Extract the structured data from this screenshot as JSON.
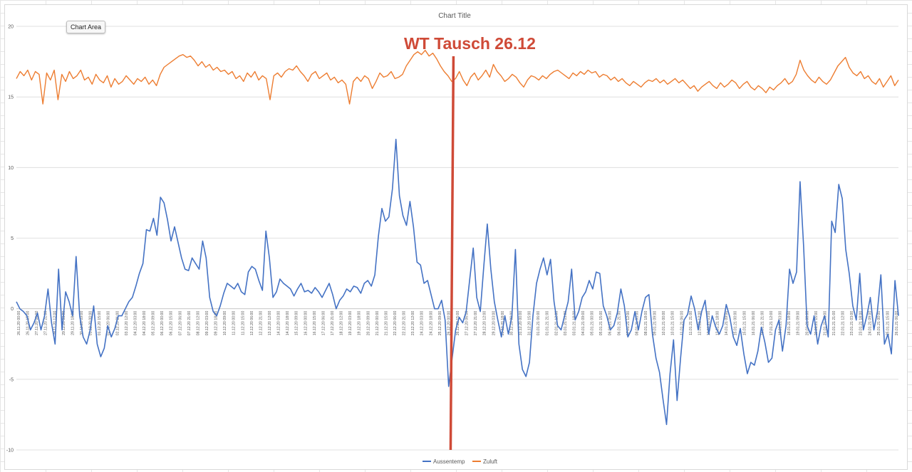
{
  "tooltip": {
    "label": "Chart Area"
  },
  "chart_data": {
    "type": "line",
    "title": "Chart Title",
    "xlabel": "",
    "ylabel": "",
    "ylim": [
      -10,
      20
    ],
    "yticks": [
      -10,
      -5,
      0,
      5,
      10,
      15,
      20
    ],
    "grid": true,
    "legend": "bottom",
    "colors": {
      "Aussentemp": "#4472c4",
      "Zuluft": "#ed7d31",
      "annotation": "#cf4a37"
    },
    "x_tick_labels": [
      "26.11.20 00:00",
      "26.11.20 15:00",
      "27.11.20 06:00",
      "27.11.20 21:00",
      "28.11.20 12:00",
      "29.11.20 03:00",
      "29.11.20 18:00",
      "30.11.20 09:00",
      "01.12.20 00:00",
      "01.12.20 15:00",
      "02.12.20 06:00",
      "02.12.20 21:00",
      "03.12.20 12:00",
      "04.12.20 03:00",
      "04.12.20 18:00",
      "05.12.20 09:00",
      "06.12.20 00:00",
      "06.12.20 15:00",
      "07.12.20 06:00",
      "07.12.20 21:00",
      "08.12.20 12:00",
      "09.12.20 03:00",
      "09.12.20 18:00",
      "10.12.20 09:00",
      "11.12.20 00:00",
      "11.12.20 15:00",
      "12.12.20 06:00",
      "12.12.20 21:00",
      "13.12.20 12:00",
      "14.12.20 03:00",
      "14.12.20 18:00",
      "15.12.20 09:00",
      "16.12.20 00:00",
      "16.12.20 15:00",
      "17.12.20 06:00",
      "17.12.20 21:00",
      "18.12.20 12:00",
      "19.12.20 03:00",
      "19.12.20 18:00",
      "20.12.20 09:00",
      "21.12.20 00:00",
      "21.12.20 15:00",
      "22.12.20 06:00",
      "22.12.20 21:00",
      "23.12.20 12:00",
      "24.12.20 03:00",
      "24.12.20 18:00",
      "25.12.20 09:00",
      "26.12.20 00:00",
      "26.12.20 15:00",
      "27.12.20 06:00",
      "27.12.20 21:00",
      "28.12.20 12:00",
      "29.12.20 03:00",
      "29.12.20 18:00",
      "30.12.20 09:00",
      "31.12.20 00:00",
      "31.12.20 15:00",
      "01.01.21 06:00",
      "01.01.21 21:00",
      "02.01.21 12:00",
      "03.01.21 03:00",
      "03.01.21 18:00",
      "04.01.21 09:00",
      "05.01.21 00:00",
      "05.01.21 15:00",
      "06.01.21 06:00",
      "06.01.21 21:00",
      "07.01.21 12:00",
      "08.01.21 03:00",
      "08.01.21 18:00",
      "09.01.21 09:00",
      "10.01.21 00:00",
      "10.01.21 15:00",
      "11.01.21 06:00",
      "11.01.21 21:00",
      "12.01.21 12:00",
      "13.01.21 03:00",
      "13.01.21 18:00",
      "14.01.21 09:00",
      "15.01.21 00:00",
      "15.01.21 15:00",
      "16.01.21 06:00",
      "16.01.21 21:00",
      "17.01.21 12:00",
      "18.01.21 03:00",
      "18.01.21 18:00",
      "19.01.21 09:00",
      "20.01.21 00:00",
      "20.01.21 15:00",
      "21.01.21 06:00",
      "21.01.21 21:00",
      "22.01.21 12:00",
      "23.01.21 03:00",
      "23.01.21 18:00",
      "24.01.21 09:00",
      "25.01.21 00:00",
      "25.01.21 15:00",
      "26.01.21 06:00"
    ],
    "series": [
      {
        "name": "Aussentemp",
        "values": [
          0.5,
          0,
          -0.2,
          -0.5,
          -1.5,
          -1,
          -0.3,
          -1.5,
          -0.5,
          1.4,
          -1,
          -2.5,
          2.8,
          -1.5,
          1.2,
          0.5,
          -0.5,
          3.7,
          -0.5,
          -2,
          -2.5,
          -1.5,
          0.2,
          -2.5,
          -3.4,
          -2.8,
          -1.2,
          -2,
          -1.4,
          -0.5,
          -0.5,
          0,
          0.5,
          0.8,
          1.6,
          2.5,
          3.2,
          5.6,
          5.5,
          6.4,
          5.2,
          7.9,
          7.5,
          6.3,
          4.8,
          5.8,
          4.7,
          3.6,
          2.8,
          2.7,
          3.6,
          3.2,
          2.8,
          4.8,
          3.6,
          0.8,
          -0.2,
          -0.5,
          0.2,
          1.1,
          1.8,
          1.6,
          1.4,
          1.8,
          1.2,
          1.0,
          2.6,
          3.0,
          2.8,
          2.0,
          1.3,
          5.5,
          3.6,
          0.8,
          1.2,
          2.1,
          1.8,
          1.6,
          1.4,
          0.9,
          1.4,
          1.8,
          1.2,
          1.3,
          1.1,
          1.5,
          1.2,
          0.8,
          1.3,
          1.8,
          1.0,
          0.0,
          0.6,
          0.9,
          1.4,
          1.2,
          1.6,
          1.5,
          1.1,
          1.8,
          2.0,
          1.6,
          2.4,
          5.1,
          7.1,
          6.2,
          6.5,
          8.5,
          12.0,
          8.0,
          6.6,
          5.9,
          7.6,
          5.8,
          3.3,
          3.1,
          1.8,
          2.0,
          1.0,
          0.0,
          0.0,
          0.6,
          -0.8,
          -5.5,
          -3.5,
          -1.5,
          -0.6,
          -1,
          -0.2,
          2.1,
          4.3,
          0.8,
          -0.2,
          3.0,
          6.0,
          2.8,
          0.5,
          -0.8,
          -2.0,
          -0.5,
          -1.8,
          -0.5,
          4.2,
          -2.5,
          -4.3,
          -4.8,
          -3.8,
          -0.5,
          1.8,
          2.8,
          3.6,
          2.4,
          3.5,
          0.5,
          -1.2,
          -1.5,
          -0.5,
          0.5,
          2.8,
          -0.8,
          -0.2,
          0.8,
          1.2,
          2.0,
          1.4,
          2.6,
          2.5,
          0.2,
          -0.5,
          -1.5,
          -1.2,
          -0.3,
          1.4,
          0.2,
          -2.0,
          -1.5,
          -0.2,
          -1.5,
          -0.2,
          0.8,
          1.0,
          -1.8,
          -3.5,
          -4.5,
          -6.4,
          -8.2,
          -4.6,
          -2.2,
          -6.5,
          -3.5,
          -0.8,
          -0.4,
          0.9,
          0.0,
          -1.5,
          -0.2,
          0.6,
          -1.8,
          -0.5,
          -1.3,
          -1.8,
          -1.2,
          0.3,
          -0.6,
          -2.0,
          -2.6,
          -1.4,
          -3.2,
          -4.6,
          -3.8,
          -4.0,
          -3.0,
          -1.3,
          -2.4,
          -3.8,
          -3.5,
          -1.5,
          -0.8,
          -3.0,
          -1.2,
          2.8,
          1.8,
          2.6,
          9.0,
          4.5,
          -1.2,
          -1.8,
          -0.5,
          -2.5,
          -1.2,
          -0.5,
          -2.0,
          6.2,
          5.4,
          8.8,
          7.8,
          4.2,
          2.5,
          0.2,
          -0.8,
          2.5,
          -1.5,
          -0.5,
          0.8,
          -1.5,
          -0.2,
          2.4,
          -2.5,
          -1.8,
          -3.2,
          2.0,
          -0.5
        ]
      },
      {
        "name": "Zuluft",
        "values": [
          16.3,
          16.8,
          16.5,
          16.9,
          16.2,
          16.8,
          16.6,
          14.5,
          16.7,
          16.2,
          16.9,
          14.8,
          16.6,
          16.1,
          16.8,
          16.3,
          16.5,
          16.9,
          16.2,
          16.4,
          15.9,
          16.6,
          16.2,
          16.0,
          16.5,
          15.7,
          16.3,
          15.9,
          16.1,
          16.5,
          16.2,
          15.9,
          16.3,
          16.1,
          16.4,
          15.9,
          16.2,
          15.8,
          16.6,
          17.1,
          17.3,
          17.5,
          17.7,
          17.9,
          18.0,
          17.8,
          17.9,
          17.6,
          17.2,
          17.5,
          17.1,
          17.3,
          16.9,
          17.1,
          16.8,
          16.9,
          16.6,
          16.8,
          16.3,
          16.5,
          16.1,
          16.7,
          16.4,
          16.8,
          16.2,
          16.5,
          16.3,
          14.8,
          16.5,
          16.7,
          16.4,
          16.8,
          17.0,
          16.9,
          17.2,
          16.8,
          16.5,
          16.1,
          16.6,
          16.8,
          16.3,
          16.5,
          16.7,
          16.2,
          16.4,
          16.0,
          16.2,
          15.9,
          14.5,
          16.1,
          16.4,
          16.1,
          16.5,
          16.3,
          15.6,
          16.1,
          16.7,
          16.4,
          16.5,
          16.8,
          16.3,
          16.4,
          16.6,
          17.2,
          17.6,
          18.0,
          18.2,
          18.0,
          18.3,
          17.9,
          18.1,
          17.7,
          17.2,
          16.8,
          16.5,
          16.1,
          16.3,
          16.8,
          16.2,
          15.8,
          16.4,
          16.7,
          16.2,
          16.5,
          16.9,
          16.4,
          17.3,
          16.8,
          16.5,
          16.1,
          16.3,
          16.6,
          16.4,
          16.0,
          15.7,
          16.2,
          16.5,
          16.4,
          16.2,
          16.5,
          16.3,
          16.6,
          16.8,
          16.9,
          16.7,
          16.5,
          16.3,
          16.7,
          16.5,
          16.8,
          16.6,
          16.9,
          16.7,
          16.8,
          16.4,
          16.6,
          16.5,
          16.2,
          16.4,
          16.1,
          16.3,
          16.0,
          15.8,
          16.1,
          15.9,
          15.7,
          16.0,
          16.2,
          16.1,
          16.3,
          16.0,
          16.2,
          15.9,
          16.1,
          16.3,
          16.0,
          16.2,
          15.9,
          15.6,
          15.8,
          15.4,
          15.7,
          15.9,
          16.1,
          15.8,
          15.6,
          16.0,
          15.7,
          15.9,
          16.2,
          16.0,
          15.6,
          15.9,
          16.1,
          15.7,
          15.5,
          15.8,
          15.6,
          15.3,
          15.7,
          15.5,
          15.8,
          16.0,
          16.3,
          15.9,
          16.1,
          16.6,
          17.6,
          16.9,
          16.5,
          16.2,
          16.0,
          16.4,
          16.1,
          15.9,
          16.2,
          16.7,
          17.2,
          17.5,
          17.8,
          17.1,
          16.7,
          16.5,
          16.8,
          16.3,
          16.5,
          16.1,
          15.9,
          16.3,
          15.7,
          16.1,
          16.5,
          15.8,
          16.2
        ]
      }
    ],
    "annotation": {
      "text": "WT Tausch 26.12",
      "x_label": "26.12.20 00:00"
    }
  }
}
